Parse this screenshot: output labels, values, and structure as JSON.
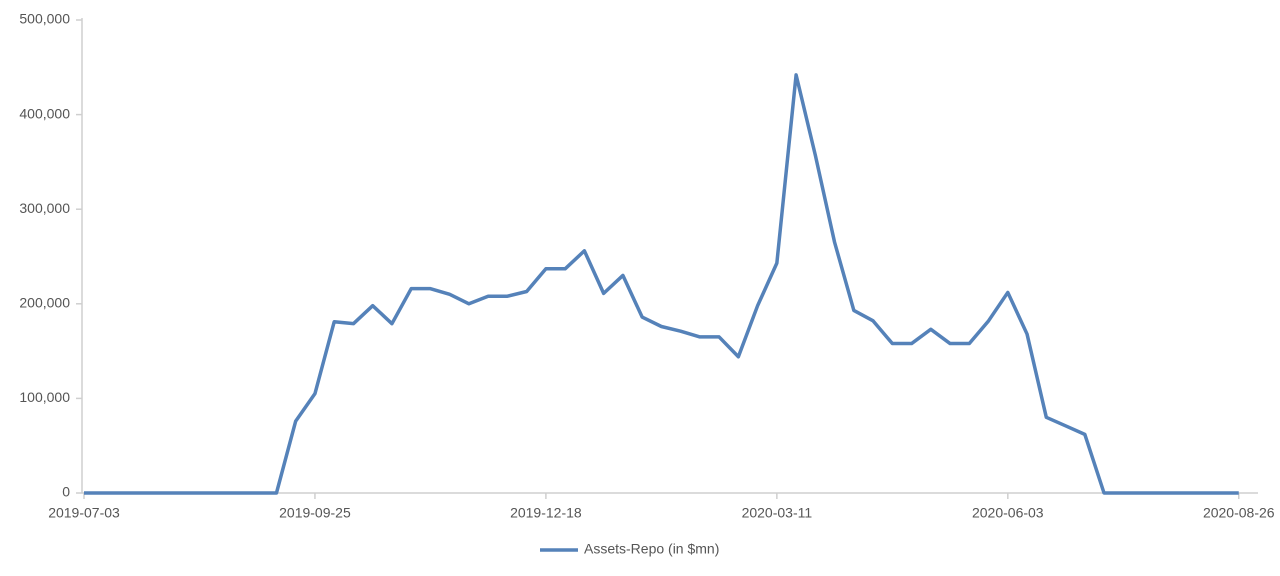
{
  "chart_data": {
    "type": "line",
    "x": [
      "2019-07-03",
      "2019-07-10",
      "2019-07-17",
      "2019-07-24",
      "2019-07-31",
      "2019-08-07",
      "2019-08-14",
      "2019-08-21",
      "2019-08-28",
      "2019-09-04",
      "2019-09-11",
      "2019-09-18",
      "2019-09-25",
      "2019-10-02",
      "2019-10-09",
      "2019-10-16",
      "2019-10-23",
      "2019-10-30",
      "2019-11-06",
      "2019-11-13",
      "2019-11-20",
      "2019-11-27",
      "2019-12-04",
      "2019-12-11",
      "2019-12-18",
      "2019-12-25",
      "2020-01-01",
      "2020-01-08",
      "2020-01-15",
      "2020-01-22",
      "2020-01-29",
      "2020-02-05",
      "2020-02-12",
      "2020-02-19",
      "2020-02-26",
      "2020-03-04",
      "2020-03-11",
      "2020-03-18",
      "2020-03-25",
      "2020-04-01",
      "2020-04-08",
      "2020-04-15",
      "2020-04-22",
      "2020-04-29",
      "2020-05-06",
      "2020-05-13",
      "2020-05-20",
      "2020-05-27",
      "2020-06-03",
      "2020-06-10",
      "2020-06-17",
      "2020-06-24",
      "2020-07-01",
      "2020-07-08",
      "2020-07-15",
      "2020-07-22",
      "2020-07-29",
      "2020-08-05",
      "2020-08-12",
      "2020-08-19",
      "2020-08-26"
    ],
    "series": [
      {
        "name": "Assets-Repo (in $mn)",
        "color": "#5582b9",
        "values": [
          0,
          0,
          0,
          0,
          0,
          0,
          0,
          0,
          0,
          0,
          0,
          76000,
          105000,
          181000,
          179000,
          198000,
          179000,
          216000,
          216000,
          210000,
          200000,
          208000,
          208000,
          213000,
          237000,
          237000,
          256000,
          211000,
          230000,
          186000,
          176000,
          171000,
          165000,
          165000,
          144000,
          198000,
          243000,
          442000,
          357000,
          265000,
          193000,
          182000,
          158000,
          158000,
          173000,
          158000,
          158000,
          182000,
          212000,
          168000,
          80000,
          71000,
          62000,
          0,
          0,
          0,
          0,
          0,
          0,
          0,
          0
        ]
      }
    ],
    "xlim": [
      "2019-07-03",
      "2020-09-02"
    ],
    "xticks": [
      "2019-07-03",
      "2019-09-25",
      "2019-12-18",
      "2020-03-11",
      "2020-06-03",
      "2020-08-26"
    ],
    "ylim": [
      0,
      500000
    ],
    "yticks": [
      {
        "value": 0,
        "label": "0"
      },
      {
        "value": 100000,
        "label": "100,000"
      },
      {
        "value": 200000,
        "label": "200,000"
      },
      {
        "value": 300000,
        "label": "300,000"
      },
      {
        "value": 400000,
        "label": "400,000"
      },
      {
        "value": 500000,
        "label": "500,000"
      }
    ],
    "legend": "bottom"
  }
}
